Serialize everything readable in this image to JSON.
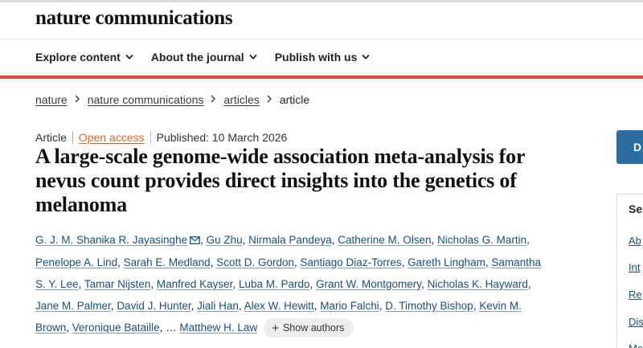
{
  "brand": {
    "name": "nature communications"
  },
  "nav": {
    "items": [
      {
        "label": "Explore content"
      },
      {
        "label": "About the journal"
      },
      {
        "label": "Publish with us"
      }
    ]
  },
  "breadcrumb": {
    "items": [
      "nature",
      "nature communications",
      "articles"
    ],
    "current": "article"
  },
  "article": {
    "type": "Article",
    "access": "Open access",
    "published": "Published: 10 March 2026",
    "title": "A large-scale genome-wide association meta-analysis for nevus count provides direct insights into the genetics of melanoma"
  },
  "authors": {
    "list": [
      "G. J. M. Shanika R. Jayasinghe",
      "Gu Zhu",
      "Nirmala Pandeya",
      "Catherine M. Olsen",
      "Nicholas G. Martin",
      "Penelope A. Lind",
      "Sarah E. Medland",
      "Scott D. Gordon",
      "Santiago Diaz-Torres",
      "Gareth Lingham",
      "Samantha S. Y. Lee",
      "Tamar Nijsten",
      "Manfred Kayser",
      "Luba M. Pardo",
      "Grant W. Montgomery",
      "Nicholas K. Hayward",
      "Jane M. Palmer",
      "David J. Hunter",
      "Jiali Han",
      "Alex W. Hewitt",
      "Mario Falchi",
      "D. Timothy Bishop",
      "Kevin M. Brown",
      "Veronique Bataille"
    ],
    "ellipsis": "…",
    "last": "Matthew H. Law",
    "show_label": "Show authors",
    "mail_icon": "envelope-icon"
  },
  "sidebar": {
    "button_label": "D",
    "heading": "Se",
    "links": [
      "Ab",
      "Int",
      "Re",
      "Dis",
      "Me"
    ]
  },
  "colors": {
    "accent_red": "#e5483a",
    "link_blue": "#1b4f7a",
    "open_access": "#d96a2b",
    "button_blue": "#2c6ca3"
  }
}
